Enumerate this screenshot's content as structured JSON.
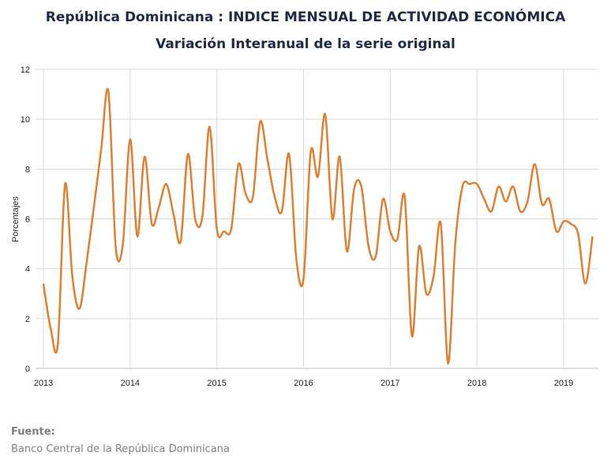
{
  "title": "República Dominicana : INDICE MENSUAL DE ACTIVIDAD ECONÓMICA",
  "subtitle": "Variación Interanual de la serie original",
  "source": {
    "label": "Fuente:",
    "text": "Banco Central de la República Dominicana"
  },
  "colors": {
    "line": "#E07F2F",
    "grid": "#d9d9d9",
    "title": "#1f2a44"
  },
  "chart_data": {
    "type": "line",
    "title": "República Dominicana : INDICE MENSUAL DE ACTIVIDAD ECONÓMICA",
    "subtitle": "Variación Interanual de la serie original",
    "xlabel": "",
    "ylabel": "Porcentajes",
    "ylim": [
      0,
      12
    ],
    "yticks": [
      0,
      2,
      4,
      6,
      8,
      10,
      12
    ],
    "xticks": [
      "2013",
      "2014",
      "2015",
      "2016",
      "2017",
      "2018",
      "2019"
    ],
    "grid": "horizontal",
    "x_dates": [
      "2013-01",
      "2013-02",
      "2013-03",
      "2013-04",
      "2013-05",
      "2013-06",
      "2013-07",
      "2013-08",
      "2013-09",
      "2013-10",
      "2013-11",
      "2013-12",
      "2014-01",
      "2014-02",
      "2014-03",
      "2014-04",
      "2014-05",
      "2014-06",
      "2014-07",
      "2014-08",
      "2014-09",
      "2014-10",
      "2014-11",
      "2014-12",
      "2015-01",
      "2015-02",
      "2015-03",
      "2015-04",
      "2015-05",
      "2015-06",
      "2015-07",
      "2015-08",
      "2015-09",
      "2015-10",
      "2015-11",
      "2015-12",
      "2016-01",
      "2016-02",
      "2016-03",
      "2016-04",
      "2016-05",
      "2016-06",
      "2016-07",
      "2016-08",
      "2016-09",
      "2016-10",
      "2016-11",
      "2016-12",
      "2017-01",
      "2017-02",
      "2017-03",
      "2017-04",
      "2017-05",
      "2017-06",
      "2017-07",
      "2017-08",
      "2017-09",
      "2017-10",
      "2017-11",
      "2017-12",
      "2018-01",
      "2018-02",
      "2018-03",
      "2018-04",
      "2018-05",
      "2018-06",
      "2018-07",
      "2018-08",
      "2018-09",
      "2018-10",
      "2018-11",
      "2018-12",
      "2019-01",
      "2019-02",
      "2019-03",
      "2019-04",
      "2019-05"
    ],
    "values": [
      3.4,
      1.6,
      1.0,
      7.4,
      3.7,
      2.4,
      4.3,
      6.5,
      8.8,
      11.1,
      4.9,
      5.0,
      9.2,
      5.3,
      8.5,
      5.8,
      6.5,
      7.4,
      6.2,
      5.1,
      8.6,
      6.0,
      6.1,
      9.7,
      5.6,
      5.5,
      5.6,
      8.2,
      7.0,
      6.9,
      9.9,
      8.4,
      6.9,
      6.3,
      8.6,
      4.4,
      3.6,
      8.7,
      7.7,
      10.2,
      6.0,
      8.5,
      4.7,
      7.2,
      7.3,
      4.9,
      4.5,
      6.8,
      5.5,
      5.2,
      6.9,
      1.3,
      4.9,
      3.0,
      3.7,
      5.8,
      0.2,
      5.0,
      7.3,
      7.4,
      7.4,
      6.8,
      6.3,
      7.3,
      6.7,
      7.3,
      6.3,
      6.7,
      8.2,
      6.6,
      6.8,
      5.5,
      5.9,
      5.8,
      5.4,
      3.4,
      5.3
    ]
  }
}
